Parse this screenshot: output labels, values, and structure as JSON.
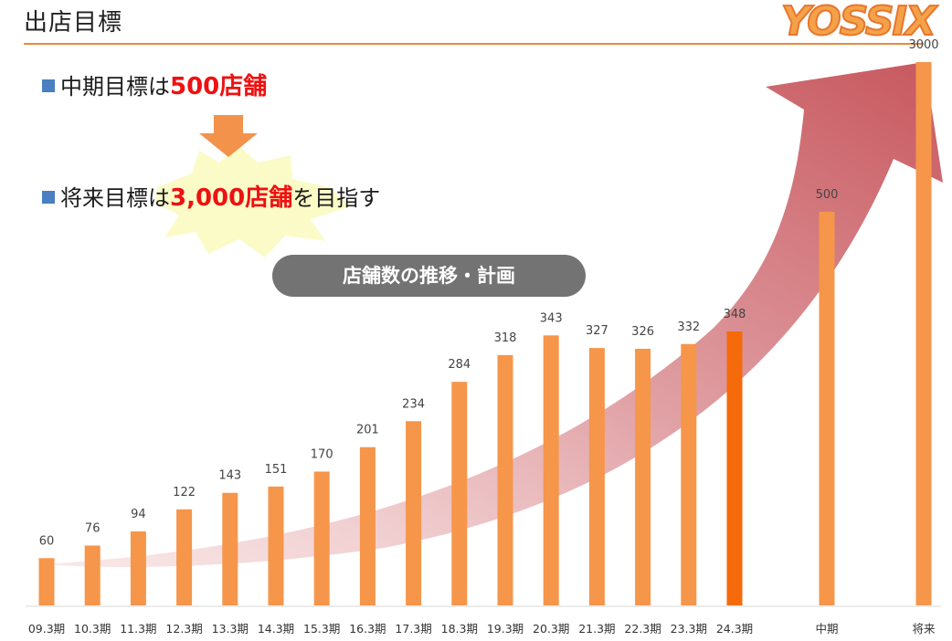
{
  "header": {
    "title": "出店目標",
    "logo_text": "YOSSIX"
  },
  "bullets": [
    {
      "prefix": "中期目標は",
      "highlight": "500店舗",
      "suffix": ""
    },
    {
      "prefix": "将来目標は",
      "highlight": "3,000店舗",
      "suffix": "を目指す"
    }
  ],
  "pill_label": "店舗数の推移・計画",
  "colors": {
    "bar": "#f5964a",
    "bar_current": "#f56a0a",
    "arrow_start": "#f6dada",
    "arrow_end": "#c7585e",
    "accent_rule": "#e98a3c",
    "highlight": "#ee1111",
    "bullet_square": "#4a7fc1",
    "burst": "#fbfbc8",
    "down_arrow": "#f3924a"
  },
  "icons": [
    "down-arrow-icon",
    "starburst-icon",
    "growth-arrow-icon"
  ],
  "chart_data": {
    "type": "bar",
    "categories": [
      "09.3期",
      "10.3期",
      "11.3期",
      "12.3期",
      "13.3期",
      "14.3期",
      "15.3期",
      "16.3期",
      "17.3期",
      "18.3期",
      "19.3期",
      "20.3期",
      "21.3期",
      "22.3期",
      "23.3期",
      "24.3期",
      "中期",
      "将来"
    ],
    "values": [
      60,
      76,
      94,
      122,
      143,
      151,
      170,
      201,
      234,
      284,
      318,
      343,
      327,
      326,
      332,
      348,
      500,
      3000
    ],
    "labels": [
      "60",
      "76",
      "94",
      "122",
      "143",
      "151",
      "170",
      "201",
      "234",
      "284",
      "318",
      "343",
      "327",
      "326",
      "332",
      "348",
      "500",
      "3000"
    ],
    "highlight_index": 15,
    "title": "店舗数の推移・計画",
    "xlabel": "",
    "ylabel": "",
    "grid": false,
    "legend": "none"
  }
}
